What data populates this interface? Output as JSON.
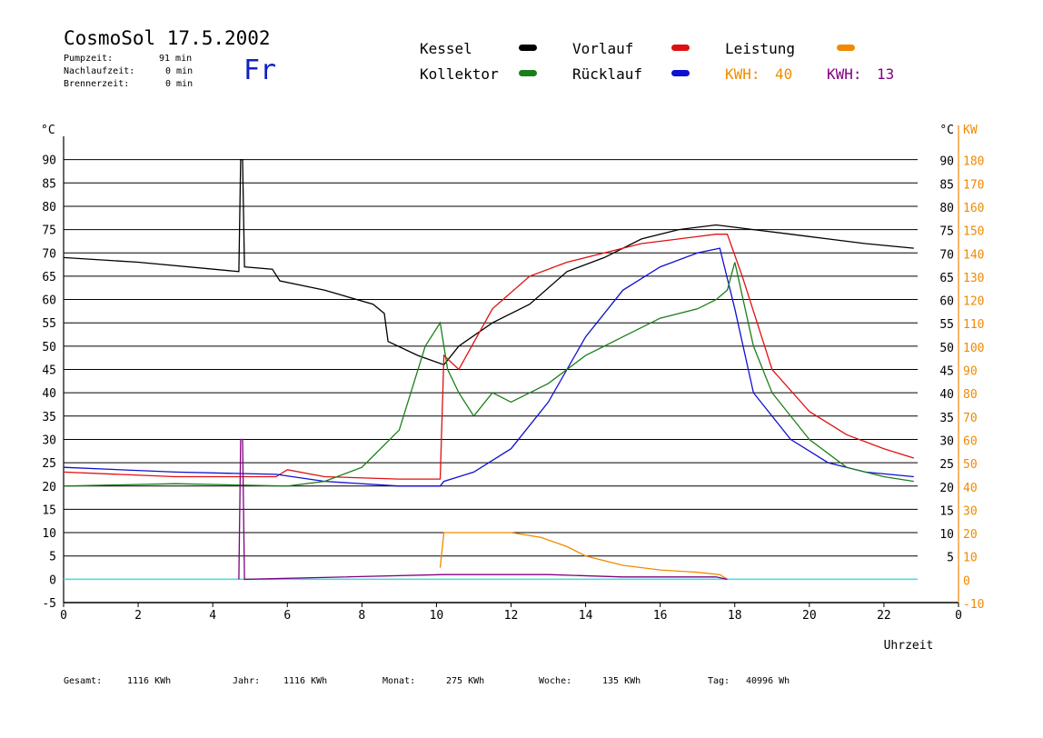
{
  "header": {
    "title": "CosmoSol 17.5.2002",
    "day": "Fr",
    "stats": [
      {
        "label": "Pumpzeit:",
        "value": "91 min"
      },
      {
        "label": "Nachlaufzeit:",
        "value": "0 min"
      },
      {
        "label": "Brennerzeit:",
        "value": "0 min"
      }
    ]
  },
  "legend": {
    "kessel": "Kessel",
    "kollektor": "Kollektor",
    "vorlauf": "Vorlauf",
    "ruecklauf": "Rücklauf",
    "leistung": "Leistung",
    "kwh1_label": "KWH:",
    "kwh1_value": "40",
    "kwh2_label": "KWH:",
    "kwh2_value": "13"
  },
  "footer": {
    "gesamt_label": "Gesamt:",
    "gesamt_value": "1116 KWh",
    "jahr_label": "Jahr:",
    "jahr_value": "1116 KWh",
    "monat_label": "Monat:",
    "monat_value": "275 KWh",
    "woche_label": "Woche:",
    "woche_value": "135 KWh",
    "tag_label": "Tag:",
    "tag_value": "40996 Wh"
  },
  "colors": {
    "kessel": "#000000",
    "kollektor": "#1a7f1a",
    "vorlauf": "#e01010",
    "ruecklauf": "#1010d0",
    "leistung": "#f08a00",
    "kwh2": "#800080",
    "baseline": "#40e0e0"
  },
  "chart_data": {
    "type": "line",
    "xlabel": "Uhrzeit",
    "ylabel_left": "°C",
    "ylabel_right_unit1": "°C",
    "ylabel_right_unit2": "KW",
    "xlim": [
      0,
      24
    ],
    "ylim": [
      -5,
      95
    ],
    "ylim_right_kw": [
      -10,
      190
    ],
    "x_ticks": [
      "0",
      "2",
      "4",
      "6",
      "8",
      "10",
      "12",
      "14",
      "16",
      "18",
      "20",
      "22",
      "0"
    ],
    "y_ticks_left": [
      "-5",
      "0",
      "5",
      "10",
      "15",
      "20",
      "25",
      "30",
      "35",
      "40",
      "45",
      "50",
      "55",
      "60",
      "65",
      "70",
      "75",
      "80",
      "85",
      "90"
    ],
    "y_ticks_right_c": [
      "5",
      "10",
      "15",
      "20",
      "25",
      "30",
      "35",
      "40",
      "45",
      "50",
      "55",
      "60",
      "65",
      "70",
      "75",
      "80",
      "85",
      "90"
    ],
    "y_ticks_right_kw": [
      "-10",
      "0",
      "10",
      "20",
      "30",
      "40",
      "50",
      "60",
      "70",
      "80",
      "90",
      "100",
      "110",
      "120",
      "130",
      "140",
      "150",
      "160",
      "170",
      "180"
    ],
    "grid": true,
    "series": [
      {
        "name": "Kessel",
        "key": "kessel",
        "x": [
          0,
          2,
          4.7,
          4.75,
          4.8,
          4.85,
          5.6,
          5.8,
          7,
          8.3,
          8.6,
          8.7,
          9.5,
          10.2,
          10.6,
          11.5,
          12.5,
          13.5,
          14.5,
          15.5,
          16.5,
          17.5,
          18.5,
          19.5,
          20.5,
          21.5,
          22.8
        ],
        "values": [
          69,
          68,
          66,
          90,
          90,
          67,
          66.5,
          64,
          62,
          59,
          57,
          51,
          48,
          46,
          50,
          55,
          59,
          66,
          69,
          73,
          75,
          76,
          75,
          74,
          73,
          72,
          71
        ]
      },
      {
        "name": "Vorlauf",
        "key": "vorlauf",
        "x": [
          0,
          3,
          5.7,
          6,
          7,
          9,
          10.1,
          10.2,
          10.6,
          11.5,
          12.5,
          13.5,
          14.5,
          15.5,
          16.5,
          17.5,
          17.8,
          18.2,
          19,
          20,
          21,
          22,
          22.8
        ],
        "values": [
          23,
          22,
          22,
          23.5,
          22,
          21.5,
          21.5,
          48,
          45,
          58,
          65,
          68,
          70,
          72,
          73,
          74,
          74,
          65,
          45,
          36,
          31,
          28,
          26
        ]
      },
      {
        "name": "Rücklauf",
        "key": "ruecklauf",
        "x": [
          0,
          3,
          5.7,
          7,
          9,
          10.1,
          10.2,
          11,
          12,
          13,
          14,
          15,
          16,
          17,
          17.6,
          18,
          18.5,
          19.5,
          20.5,
          21.5,
          22.8
        ],
        "values": [
          24,
          23,
          22.5,
          21,
          20,
          20,
          21,
          23,
          28,
          38,
          52,
          62,
          67,
          70,
          71,
          58,
          40,
          30,
          25,
          23,
          22
        ]
      },
      {
        "name": "Kollektor",
        "key": "kollektor",
        "x": [
          0,
          3,
          6,
          7,
          8,
          9,
          9.7,
          10.1,
          10.3,
          10.6,
          11,
          11.5,
          12,
          13,
          14,
          15,
          16,
          17,
          17.5,
          17.8,
          18,
          18.5,
          19,
          20,
          21,
          22,
          22.8
        ],
        "values": [
          20,
          20.5,
          20,
          21,
          24,
          32,
          50,
          55,
          45,
          40,
          35,
          40,
          38,
          42,
          48,
          52,
          56,
          58,
          60,
          62,
          68,
          50,
          40,
          30,
          24,
          22,
          21
        ]
      },
      {
        "name": "Leistung",
        "key": "leistung",
        "x": [
          10.1,
          10.2,
          10.4,
          11,
          12,
          12.8,
          13.5,
          14,
          15,
          16,
          17,
          17.6,
          17.8
        ],
        "values": [
          5,
          20,
          20,
          20,
          20,
          18,
          14,
          10,
          6,
          4,
          3,
          2,
          0
        ]
      },
      {
        "name": "KWH",
        "key": "kwh2",
        "x": [
          4.7,
          4.75,
          4.8,
          4.85,
          10.2,
          11,
          13,
          15,
          17.5,
          17.8
        ],
        "values": [
          0,
          30,
          30,
          0,
          1,
          1,
          1,
          0.5,
          0.5,
          0
        ]
      }
    ]
  }
}
